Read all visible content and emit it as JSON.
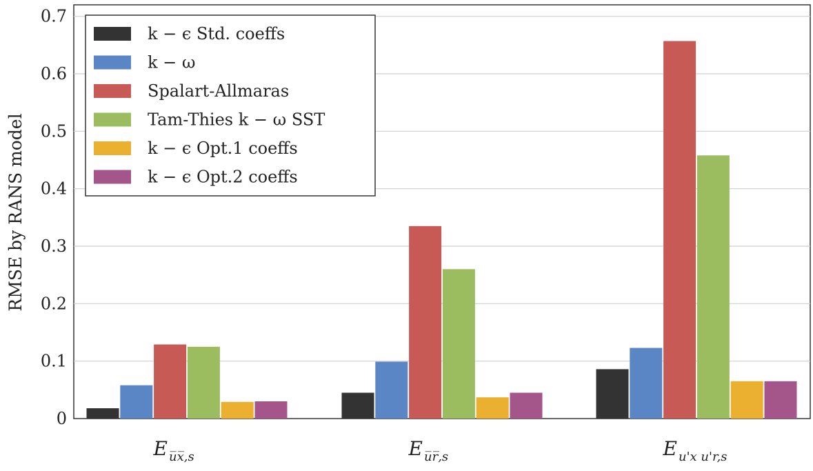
{
  "chart_data": {
    "type": "bar",
    "ylabel": "RMSE by RANS model",
    "ylim": [
      0,
      0.72
    ],
    "yticks": [
      0,
      0.1,
      0.2,
      0.3,
      0.4,
      0.5,
      0.6,
      0.7
    ],
    "ytick_labels": [
      "0",
      "0.1",
      "0.2",
      "0.3",
      "0.4",
      "0.5",
      "0.6",
      "0.7"
    ],
    "grid": "horizontal",
    "legend_position": "top-left",
    "categories": [
      {
        "main": "E",
        "sub": "u̅x̅,s",
        "plain": "E_ux,s"
      },
      {
        "main": "E",
        "sub": "u̅r̅,s",
        "plain": "E_ur,s"
      },
      {
        "main": "E",
        "sub": "u'x u'r,s",
        "plain": "E_u'xu'r,s"
      }
    ],
    "series": [
      {
        "name": "k − ϵ Std. coeffs",
        "color": "#333333",
        "values": [
          0.018,
          0.045,
          0.086
        ]
      },
      {
        "name": "k − ω",
        "color": "#5a86c5",
        "values": [
          0.058,
          0.099,
          0.123
        ]
      },
      {
        "name": "Spalart-Allmaras",
        "color": "#c85a55",
        "values": [
          0.129,
          0.335,
          0.657
        ]
      },
      {
        "name": "Tam-Thies k − ω SST",
        "color": "#9bbd5f",
        "values": [
          0.125,
          0.26,
          0.458
        ]
      },
      {
        "name": "k − ϵ Opt.1 coeffs",
        "color": "#ecb031",
        "values": [
          0.029,
          0.037,
          0.065
        ]
      },
      {
        "name": "k − ϵ Opt.2 coeffs",
        "color": "#a4568a",
        "values": [
          0.03,
          0.045,
          0.065
        ]
      }
    ]
  }
}
